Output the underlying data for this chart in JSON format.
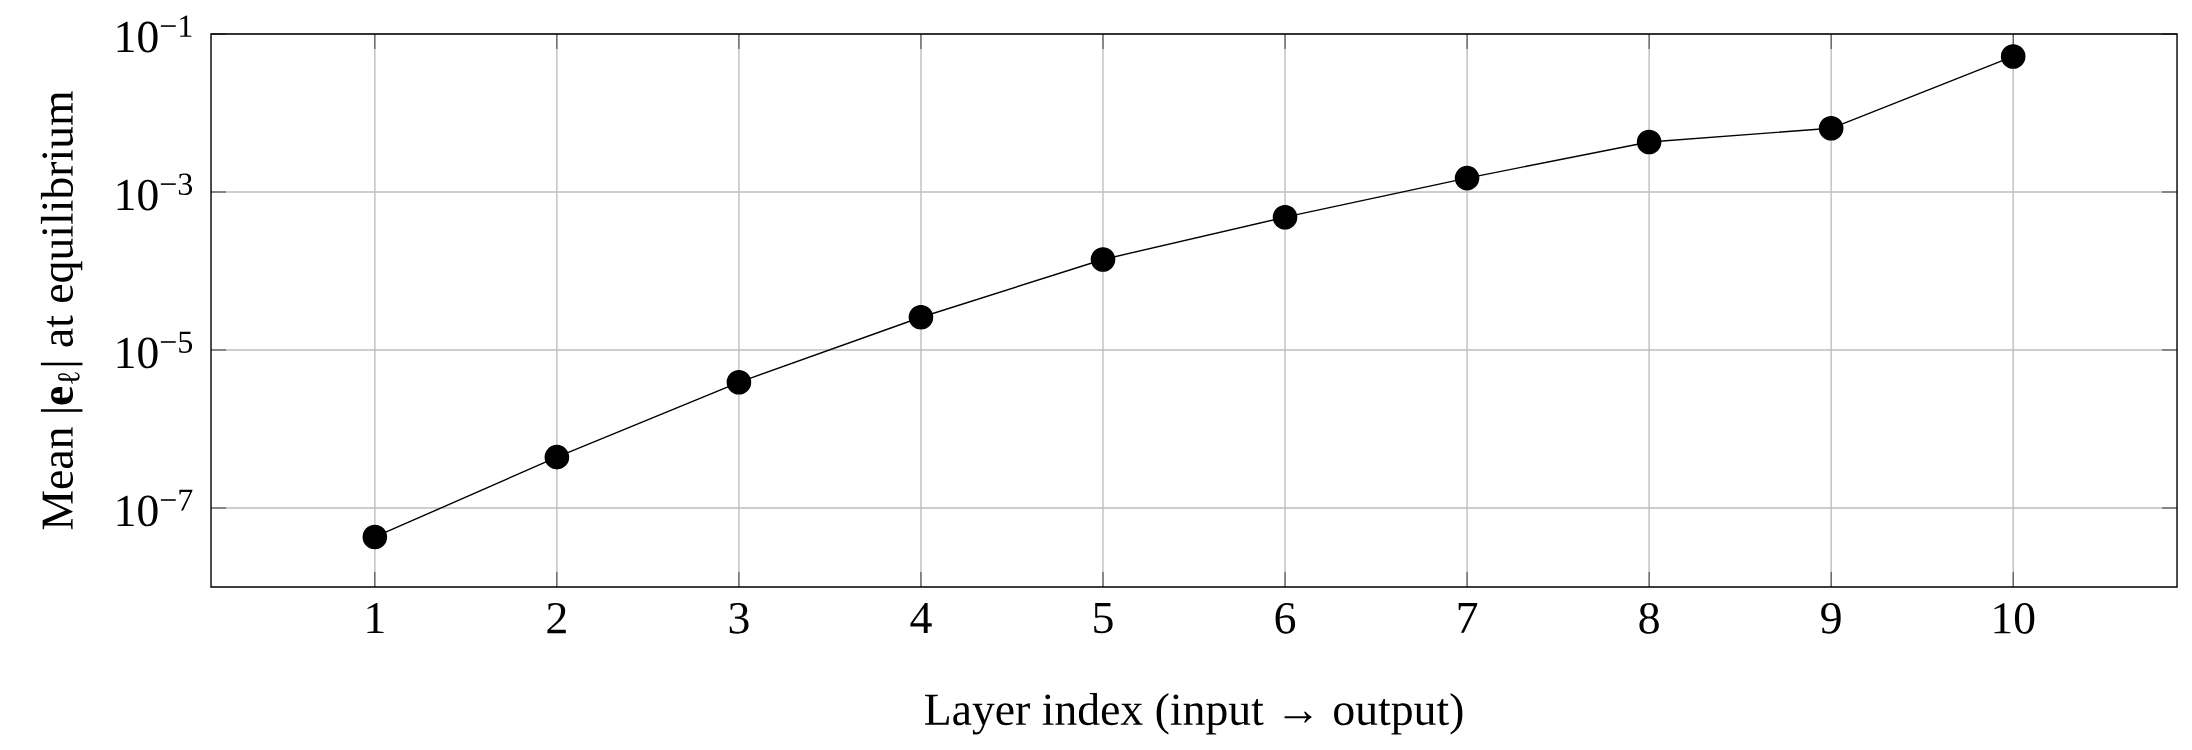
{
  "chart_data": {
    "type": "line",
    "xlabel": "Layer index (input → output)",
    "ylabel": "Mean |**e**$_{ℓ}$| at equilibrium",
    "x": [
      1,
      2,
      3,
      4,
      5,
      6,
      7,
      8,
      9,
      10
    ],
    "series": [
      {
        "color": "#000000",
        "values": [
          4.3e-08,
          4.4e-07,
          3.9e-06,
          2.6e-05,
          0.00014,
          0.00048,
          0.0015,
          0.0043,
          0.0064,
          0.052
        ]
      }
    ],
    "log": "y",
    "xlim": [
      0.1,
      10.9
    ],
    "ylim": [
      1e-08,
      0.1
    ],
    "xticks": [
      1,
      2,
      3,
      4,
      5,
      6,
      7,
      8,
      9,
      10
    ],
    "yticks": [
      {
        "value": 1e-07,
        "label": "10$^{−7}$"
      },
      {
        "value": 1e-05,
        "label": "10$^{−5}$"
      },
      {
        "value": 0.001,
        "label": "10$^{−3}$"
      },
      {
        "value": 0.1,
        "label": "10$^{−1}$"
      }
    ],
    "grid": true,
    "marker": "circle",
    "line_style": "solid"
  }
}
